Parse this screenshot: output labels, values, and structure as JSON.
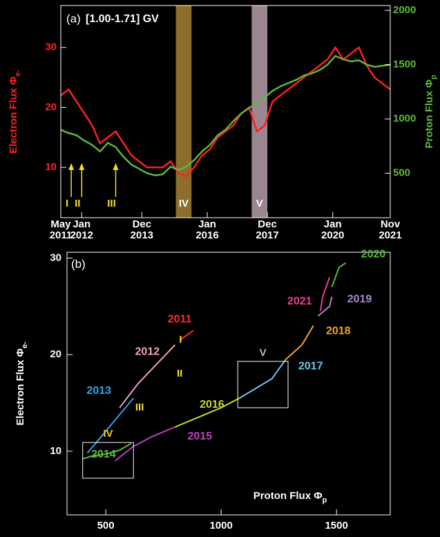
{
  "chart_data": [
    {
      "type": "line",
      "title": "(a)",
      "subtitle": "[1.00-1.71] GV",
      "ylabel": "Electron Flux Φ",
      "ylabel_sub": "e-",
      "y2label": "Proton Flux Φ",
      "y2label_sub": "p",
      "x": [
        "2011-05",
        "2011-08",
        "2011-11",
        "2012-02",
        "2012-05",
        "2012-08",
        "2012-11",
        "2013-02",
        "2013-05",
        "2013-08",
        "2013-11",
        "2014-02",
        "2014-05",
        "2014-08",
        "2014-11",
        "2015-02",
        "2015-05",
        "2015-08",
        "2015-11",
        "2016-02",
        "2016-05",
        "2016-08",
        "2016-11",
        "2017-02",
        "2017-05",
        "2017-08",
        "2017-11",
        "2018-02",
        "2018-05",
        "2018-08",
        "2018-11",
        "2019-02",
        "2019-05",
        "2019-08",
        "2019-11",
        "2020-02",
        "2020-05",
        "2020-08",
        "2020-11",
        "2021-02",
        "2021-05",
        "2021-08",
        "2021-11"
      ],
      "xlim": [
        "2011-05",
        "2021-11"
      ],
      "xticks": [
        {
          "value": "2011-05",
          "label": "May 2011"
        },
        {
          "value": "2012-01",
          "label": "Jan 2012"
        },
        {
          "value": "2013-12",
          "label": "Dec 2013"
        },
        {
          "value": "2016-01",
          "label": "Jan 2016"
        },
        {
          "value": "2017-12",
          "label": "Dec 2017"
        },
        {
          "value": "2020-01",
          "label": "Jan 2020"
        },
        {
          "value": "2021-11",
          "label": "Nov 2021"
        }
      ],
      "ylim": [
        1.6,
        37
      ],
      "yticks": [
        10,
        20,
        30
      ],
      "y2lim": [
        90,
        2045
      ],
      "y2ticks": [
        500,
        1000,
        1500,
        2000
      ],
      "series": [
        {
          "color": "#ff2020",
          "values": [
            22,
            23,
            21,
            19,
            17,
            14,
            15,
            16,
            14,
            12,
            11,
            10,
            10,
            10,
            11,
            9,
            8.5,
            10,
            12,
            13,
            15,
            16,
            17,
            19,
            20,
            16,
            17,
            21,
            22,
            23,
            24,
            25,
            26,
            27,
            28,
            30,
            28,
            29,
            30,
            27,
            25,
            24,
            23
          ]
        },
        {
          "color": "#5fb83a",
          "axis": "y2",
          "values": [
            900,
            870,
            850,
            800,
            760,
            700,
            780,
            740,
            650,
            580,
            540,
            500,
            480,
            490,
            560,
            530,
            560,
            620,
            700,
            760,
            850,
            900,
            980,
            1050,
            1100,
            1150,
            1200,
            1260,
            1300,
            1330,
            1360,
            1400,
            1420,
            1450,
            1500,
            1580,
            1550,
            1530,
            1540,
            1500,
            1480,
            1490,
            1500
          ]
        }
      ],
      "periods": [
        {
          "from": "2015-01",
          "to": "2015-07",
          "label": "IV",
          "color": "#8c6d2c"
        },
        {
          "from": "2017-06",
          "to": "2017-12",
          "label": "V",
          "color": "#9a8591"
        }
      ],
      "markers": [
        {
          "x": "2011-09",
          "label": "I"
        },
        {
          "x": "2012-01",
          "label": "II"
        },
        {
          "x": "2013-02",
          "label": "III"
        }
      ]
    },
    {
      "type": "line",
      "title": "(b)",
      "xlabel": "Proton Flux Φ",
      "xlabel_sub": "p",
      "ylabel": "Electron Flux Φ",
      "ylabel_sub": "e-",
      "xlim": [
        332,
        1733
      ],
      "xticks": [
        500,
        1000,
        1500
      ],
      "ylim": [
        3.4,
        30.6
      ],
      "yticks": [
        10,
        20,
        30
      ],
      "series": [
        {
          "name": "2011",
          "color": "#ff2a2a",
          "x": [
            820,
            850,
            880
          ],
          "values": [
            21.5,
            22,
            22.5
          ]
        },
        {
          "name": "2012",
          "color": "#f5a0c8",
          "x": [
            560,
            640,
            720,
            800
          ],
          "values": [
            14.5,
            17,
            19,
            21
          ]
        },
        {
          "name": "2013",
          "color": "#2aa8e8",
          "x": [
            420,
            480,
            550,
            620
          ],
          "values": [
            9.8,
            11.5,
            13.5,
            15.5
          ]
        },
        {
          "name": "2014",
          "color": "#5fb83a",
          "x": [
            400,
            440,
            500,
            560,
            610
          ],
          "values": [
            9.2,
            9.5,
            9.7,
            10.1,
            10.8
          ]
        },
        {
          "name": "2015",
          "color": "#c040c0",
          "x": [
            540,
            620,
            700,
            800
          ],
          "values": [
            9,
            10.5,
            11.5,
            12.5
          ]
        },
        {
          "name": "2016",
          "color": "#c8d82a",
          "x": [
            800,
            900,
            1000,
            1080
          ],
          "values": [
            12.5,
            13.5,
            14.5,
            15.5
          ]
        },
        {
          "name": "2017",
          "color": "#6cc8e8",
          "x": [
            1080,
            1150,
            1220,
            1280
          ],
          "values": [
            15.5,
            16.5,
            17.5,
            19.5
          ]
        },
        {
          "name": "2018",
          "color": "#f5a623",
          "x": [
            1280,
            1350,
            1400
          ],
          "values": [
            19.5,
            21,
            23
          ]
        },
        {
          "name": "2019",
          "color": "#a98bc8",
          "x": [
            1420,
            1470,
            1480
          ],
          "values": [
            24,
            25,
            26
          ]
        },
        {
          "name": "2020",
          "color": "#5fb83a",
          "x": [
            1480,
            1510,
            1540
          ],
          "values": [
            27,
            29,
            29.5
          ]
        },
        {
          "name": "2021",
          "color": "#f03c9a",
          "x": [
            1470,
            1440,
            1430
          ],
          "values": [
            28,
            26,
            24.5
          ]
        }
      ],
      "regions": [
        {
          "label": "IV",
          "xrange": [
            400,
            620
          ],
          "yrange": [
            7.2,
            10.9
          ]
        },
        {
          "label": "V",
          "xrange": [
            1072,
            1290
          ],
          "yrange": [
            14.5,
            19.3
          ]
        }
      ],
      "annotations": [
        {
          "label": "I",
          "x": 800,
          "y": 21.5
        },
        {
          "label": "II",
          "x": 790,
          "y": 18
        },
        {
          "label": "III",
          "x": 610,
          "y": 14.5
        }
      ]
    }
  ]
}
